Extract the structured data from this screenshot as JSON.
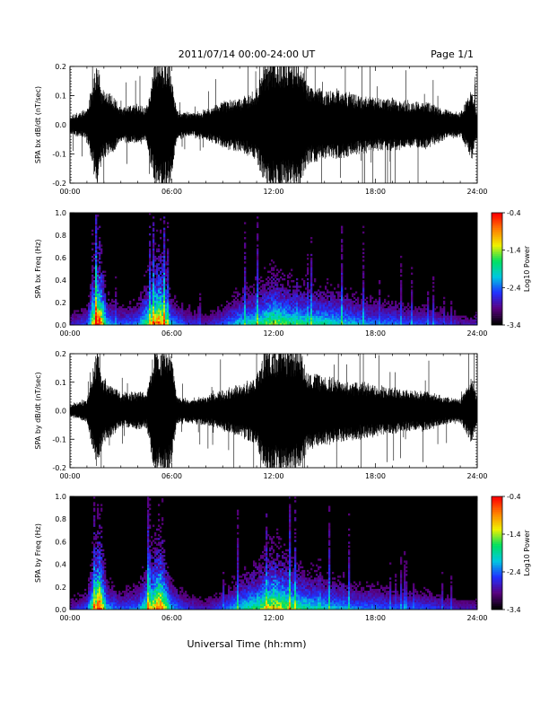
{
  "header": {
    "title": "2011/07/14  00:00-24:00 UT",
    "page": "Page 1/1"
  },
  "footer": {
    "xlabel": "Universal Time (hh:mm)"
  },
  "colors": {
    "background": "#ffffff",
    "signal": "#000000",
    "spectrogram_background": "#000000",
    "colormap": [
      "#000000",
      "#5a0080",
      "#2030ff",
      "#00c8e0",
      "#00e060",
      "#f0f000",
      "#ff8000",
      "#ff0000"
    ]
  },
  "chart_data": [
    {
      "id": "bx-signal",
      "type": "line",
      "ylabel": "SPA bx dB/dt (nT/sec)",
      "xlim": [
        0,
        24
      ],
      "ylim": [
        -0.2,
        0.2
      ],
      "xticks": [
        "00:00",
        "06:00",
        "12:00",
        "18:00",
        "24:00"
      ],
      "yticks": [
        "-0.2",
        "-0.1",
        "0.0",
        "0.1",
        "0.2"
      ],
      "amplitude_envelope": [
        [
          0,
          0.03
        ],
        [
          1,
          0.05
        ],
        [
          1.6,
          0.22
        ],
        [
          1.9,
          0.12
        ],
        [
          2.5,
          0.1
        ],
        [
          3,
          0.06
        ],
        [
          4,
          0.07
        ],
        [
          4.5,
          0.06
        ],
        [
          5,
          0.22
        ],
        [
          5.9,
          0.22
        ],
        [
          6.3,
          0.05
        ],
        [
          7,
          0.04
        ],
        [
          8,
          0.05
        ],
        [
          9,
          0.08
        ],
        [
          10,
          0.09
        ],
        [
          11,
          0.12
        ],
        [
          11.5,
          0.22
        ],
        [
          13.5,
          0.22
        ],
        [
          14,
          0.14
        ],
        [
          15,
          0.12
        ],
        [
          16,
          0.12
        ],
        [
          17,
          0.1
        ],
        [
          18,
          0.09
        ],
        [
          19,
          0.09
        ],
        [
          20,
          0.08
        ],
        [
          21,
          0.08
        ],
        [
          22,
          0.05
        ],
        [
          23,
          0.04
        ],
        [
          23.7,
          0.12
        ],
        [
          24,
          0.04
        ]
      ]
    },
    {
      "id": "bx-spectrogram",
      "type": "heatmap",
      "ylabel": "SPA bx Freq (Hz)",
      "xlim": [
        0,
        24
      ],
      "ylim": [
        0.0,
        1.0
      ],
      "xticks": [
        "00:00",
        "06:00",
        "12:00",
        "18:00",
        "24:00"
      ],
      "yticks": [
        "0.0",
        "0.2",
        "0.4",
        "0.6",
        "0.8",
        "1.0"
      ],
      "colorbar": {
        "label": "Log10 Power",
        "range": [
          -3.4,
          -0.4
        ],
        "ticks": [
          "-0.4",
          "-1.4",
          "-2.4",
          "-3.4"
        ]
      },
      "activity": [
        [
          0,
          0.2
        ],
        [
          1,
          0.3
        ],
        [
          1.7,
          1.0
        ],
        [
          2.2,
          0.4
        ],
        [
          3,
          0.3
        ],
        [
          4,
          0.35
        ],
        [
          5.3,
          0.9
        ],
        [
          6,
          0.4
        ],
        [
          7,
          0.25
        ],
        [
          8,
          0.2
        ],
        [
          9,
          0.3
        ],
        [
          10,
          0.45
        ],
        [
          11,
          0.5
        ],
        [
          12,
          0.65
        ],
        [
          13,
          0.55
        ],
        [
          14,
          0.5
        ],
        [
          15,
          0.5
        ],
        [
          16,
          0.45
        ],
        [
          17,
          0.4
        ],
        [
          18,
          0.35
        ],
        [
          19,
          0.35
        ],
        [
          20,
          0.3
        ],
        [
          21,
          0.3
        ],
        [
          22,
          0.25
        ],
        [
          23,
          0.2
        ],
        [
          24,
          0.2
        ]
      ]
    },
    {
      "id": "by-signal",
      "type": "line",
      "ylabel": "SPA by dB/dt (nT/sec)",
      "xlim": [
        0,
        24
      ],
      "ylim": [
        -0.2,
        0.2
      ],
      "xticks": [
        "00:00",
        "06:00",
        "12:00",
        "18:00",
        "24:00"
      ],
      "yticks": [
        "-0.2",
        "-0.1",
        "0.0",
        "0.1",
        "0.2"
      ],
      "amplitude_envelope": [
        [
          0,
          0.02
        ],
        [
          1,
          0.04
        ],
        [
          1.6,
          0.22
        ],
        [
          1.9,
          0.12
        ],
        [
          2.5,
          0.09
        ],
        [
          3,
          0.06
        ],
        [
          4,
          0.07
        ],
        [
          4.5,
          0.06
        ],
        [
          5,
          0.22
        ],
        [
          5.9,
          0.22
        ],
        [
          6.3,
          0.05
        ],
        [
          7,
          0.04
        ],
        [
          8,
          0.05
        ],
        [
          9,
          0.07
        ],
        [
          10,
          0.09
        ],
        [
          11,
          0.12
        ],
        [
          11.5,
          0.22
        ],
        [
          13.5,
          0.22
        ],
        [
          14,
          0.14
        ],
        [
          15,
          0.12
        ],
        [
          16,
          0.11
        ],
        [
          17,
          0.1
        ],
        [
          18,
          0.09
        ],
        [
          19,
          0.08
        ],
        [
          20,
          0.07
        ],
        [
          21,
          0.07
        ],
        [
          22,
          0.05
        ],
        [
          23,
          0.04
        ],
        [
          23.7,
          0.12
        ],
        [
          24,
          0.04
        ]
      ]
    },
    {
      "id": "by-spectrogram",
      "type": "heatmap",
      "ylabel": "SPA by Freq (Hz)",
      "xlim": [
        0,
        24
      ],
      "ylim": [
        0.0,
        1.0
      ],
      "xticks": [
        "00:00",
        "06:00",
        "12:00",
        "18:00",
        "24:00"
      ],
      "yticks": [
        "0.0",
        "0.2",
        "0.4",
        "0.6",
        "0.8",
        "1.0"
      ],
      "colorbar": {
        "label": "Log10 Power",
        "range": [
          -3.4,
          -0.4
        ],
        "ticks": [
          "-0.4",
          "-1.4",
          "-2.4",
          "-3.4"
        ]
      },
      "activity": [
        [
          0,
          0.2
        ],
        [
          1,
          0.3
        ],
        [
          1.7,
          1.0
        ],
        [
          2.2,
          0.4
        ],
        [
          3,
          0.3
        ],
        [
          4,
          0.35
        ],
        [
          5.3,
          0.9
        ],
        [
          6,
          0.4
        ],
        [
          7,
          0.25
        ],
        [
          8,
          0.2
        ],
        [
          9,
          0.3
        ],
        [
          10,
          0.45
        ],
        [
          11,
          0.55
        ],
        [
          12,
          0.75
        ],
        [
          13,
          0.6
        ],
        [
          14,
          0.5
        ],
        [
          15,
          0.45
        ],
        [
          16,
          0.4
        ],
        [
          17,
          0.35
        ],
        [
          18,
          0.35
        ],
        [
          19,
          0.3
        ],
        [
          20,
          0.3
        ],
        [
          21,
          0.3
        ],
        [
          22,
          0.25
        ],
        [
          23,
          0.2
        ],
        [
          24,
          0.2
        ]
      ]
    }
  ]
}
